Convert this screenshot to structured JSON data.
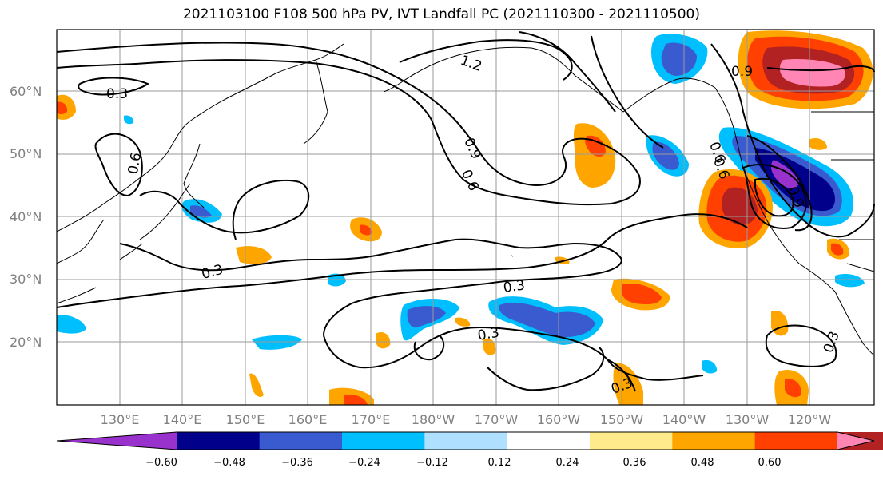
{
  "title": "2021103100 F108 500 hPa PV, IVT Landfall PC (2021110300 - 2021110500)",
  "lat_labels": [
    "60°N",
    "50°N",
    "40°N",
    "30°N",
    "20°N"
  ],
  "lon_labels": [
    "130°E",
    "140°E",
    "150°E",
    "160°E",
    "170°E",
    "180°W",
    "170°W",
    "160°W",
    "150°W",
    "140°W",
    "130°W",
    "120°W"
  ],
  "colorbar": {
    "labels": [
      "−0.60",
      "−0.48",
      "−0.36",
      "−0.24",
      "−0.12",
      "0.12",
      "0.24",
      "0.36",
      "0.48",
      "0.60"
    ],
    "colors": [
      "#9932cc",
      "#00008b",
      "#3a5bd0",
      "#00bfff",
      "#b0e0ff",
      "#ffffff",
      "#ffeb8c",
      "#ffa500",
      "#ff4000",
      "#b22222",
      "#ff85b4"
    ]
  },
  "contour_labels": [
    "0.3",
    "0.6",
    "0.9",
    "1.2",
    "0.6",
    "0.9",
    "0.6",
    "0.3",
    "0.3",
    "0.3",
    "0.3",
    "0.9",
    "0.6",
    "0.3"
  ]
}
